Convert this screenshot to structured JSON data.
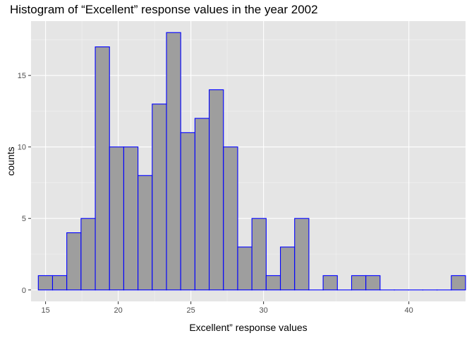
{
  "chart_data": {
    "type": "bar",
    "title": "Histogram of “Excellent” response values in the year 2002",
    "xlabel": "Excellent” response values",
    "ylabel": "counts",
    "xlim": [
      14.0,
      43.9
    ],
    "ylim": [
      -0.8,
      18.8
    ],
    "x_ticks": [
      15,
      20,
      25,
      30,
      40
    ],
    "x_tick_labels": [
      "15",
      "20",
      "25",
      "30",
      "40"
    ],
    "y_ticks": [
      0,
      5,
      10,
      15
    ],
    "y_tick_labels": [
      "0",
      "5",
      "10",
      "15"
    ],
    "grid": true,
    "bin_width": 0.98,
    "bin_start": 14.5,
    "values": [
      1,
      1,
      4,
      5,
      17,
      10,
      10,
      8,
      13,
      18,
      11,
      12,
      14,
      10,
      3,
      5,
      1,
      3,
      5,
      0,
      1,
      0,
      1,
      1,
      0,
      0,
      0,
      0,
      0,
      1
    ],
    "colors": {
      "panel": "#e5e5e5",
      "grid_major": "#ffffff",
      "grid_minor": "#f2f2f2",
      "bar_fill": "#9e9e9e",
      "bar_outline": "#0000ff",
      "tick_text": "#4d4d4d"
    }
  }
}
